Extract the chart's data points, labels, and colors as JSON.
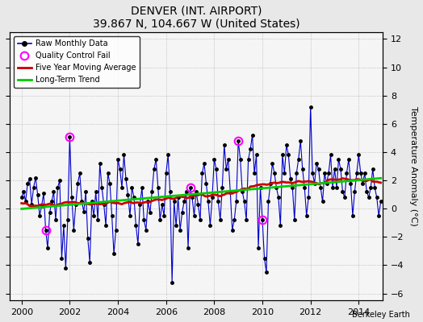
{
  "title": "DENVER (INT. AIRPORT)",
  "subtitle": "39.867 N, 104.667 W (United States)",
  "ylabel": "Temperature Anomaly (°C)",
  "credit": "Berkeley Earth",
  "xlim": [
    1999.5,
    2015.0
  ],
  "ylim": [
    -6.5,
    12.5
  ],
  "yticks": [
    -6,
    -4,
    -2,
    0,
    2,
    4,
    6,
    8,
    10,
    12
  ],
  "xticks": [
    2000,
    2002,
    2004,
    2006,
    2008,
    2010,
    2012,
    2014
  ],
  "bg_color": "#e8e8e8",
  "plot_bg_color": "#f5f5f5",
  "raw_color": "#0000cc",
  "ma_color": "#cc0000",
  "trend_color": "#00cc00",
  "qc_color": "#ff00ff",
  "raw_monthly": [
    0.8,
    1.2,
    0.5,
    1.8,
    2.1,
    0.3,
    1.5,
    2.2,
    1.0,
    -0.5,
    0.2,
    1.1,
    -1.5,
    -2.8,
    -0.3,
    0.5,
    1.2,
    -0.8,
    1.5,
    2.0,
    -3.5,
    -1.2,
    -4.2,
    -0.8,
    5.1,
    0.8,
    -1.5,
    0.3,
    1.8,
    2.5,
    0.5,
    -0.2,
    1.2,
    -2.1,
    -3.8,
    0.5,
    -0.5,
    1.2,
    -0.8,
    3.2,
    1.5,
    0.3,
    -1.2,
    2.5,
    1.8,
    -0.5,
    -3.2,
    -1.5,
    3.5,
    2.8,
    1.5,
    3.8,
    2.1,
    1.0,
    -0.5,
    1.5,
    0.8,
    -1.2,
    -2.5,
    0.3,
    1.5,
    -0.8,
    -1.5,
    0.5,
    -0.3,
    1.2,
    2.8,
    3.5,
    1.5,
    -0.8,
    0.3,
    -0.5,
    2.5,
    3.8,
    1.2,
    -5.2,
    0.5,
    -1.2,
    0.8,
    -1.5,
    -0.3,
    0.5,
    1.2,
    -2.8,
    1.5,
    0.8,
    -0.5,
    1.2,
    0.3,
    -0.8,
    2.5,
    3.2,
    1.8,
    0.5,
    -1.2,
    0.8,
    3.5,
    2.8,
    0.5,
    -0.8,
    1.5,
    4.5,
    2.8,
    3.5,
    1.2,
    -1.5,
    -0.8,
    0.5,
    4.8,
    3.5,
    1.2,
    0.5,
    -0.8,
    3.5,
    4.2,
    5.2,
    2.5,
    3.8,
    -2.8,
    1.5,
    -0.8,
    -3.5,
    -4.5,
    0.5,
    1.8,
    3.2,
    2.5,
    1.5,
    0.8,
    -1.2,
    3.8,
    2.5,
    4.5,
    3.8,
    2.1,
    1.5,
    -0.8,
    2.5,
    3.5,
    4.8,
    2.8,
    1.5,
    -0.5,
    0.8,
    7.2,
    2.5,
    1.8,
    3.2,
    2.8,
    1.5,
    0.5,
    2.5,
    1.8,
    2.5,
    3.8,
    1.5,
    2.8,
    1.5,
    3.5,
    2.8,
    1.2,
    0.8,
    2.5,
    3.5,
    1.8,
    -0.5,
    1.2,
    2.5,
    3.8,
    2.5,
    1.8,
    2.5,
    1.2,
    0.8,
    1.5,
    2.8,
    1.5,
    0.8,
    -0.5,
    0.5
  ],
  "qc_fail_indices": [
    12,
    24,
    84,
    108,
    120
  ],
  "start_year": 2000.0,
  "n_months": 180
}
